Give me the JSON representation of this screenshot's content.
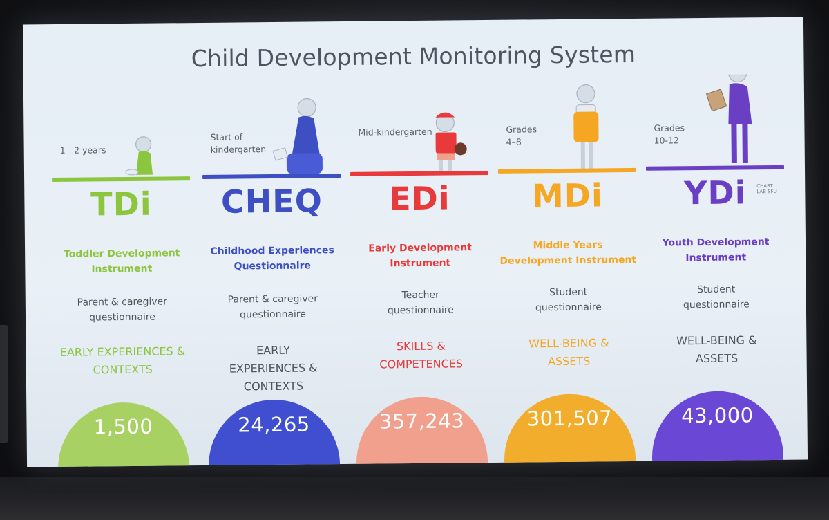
{
  "slide": {
    "title": "Child Development Monitoring System",
    "instruments": [
      {
        "age": "1 - 2 years",
        "acronym": "TDi",
        "full_name": "Toddler Development Instrument",
        "respondent": "Parent & caregiver questionnaire",
        "domain": "EARLY EXPERIENCES & CONTEXTS",
        "count": "1,500",
        "color": "#8cc63f",
        "circle_color": "#a8d163"
      },
      {
        "age": "Start of kindergarten",
        "acronym": "CHEQ",
        "full_name": "Childhood Experiences Questionnaire",
        "respondent": "Parent & caregiver questionnaire",
        "domain": "EARLY EXPERIENCES & CONTEXTS",
        "count": "24,265",
        "color": "#3d4fc2",
        "circle_color": "#3f4fcf"
      },
      {
        "age": "Mid-kindergarten",
        "acronym": "EDi",
        "full_name": "Early Development Instrument",
        "respondent": "Teacher questionnaire",
        "domain": "SKILLS & COMPETENCES",
        "count": "357,243",
        "color": "#e83a3a",
        "circle_color": "#f0a08c"
      },
      {
        "age": "Grades 4–8",
        "acronym": "MDi",
        "full_name": "Middle Years Development Instrument",
        "respondent": "Student questionnaire",
        "domain": "WELL-BEING & ASSETS",
        "count": "301,507",
        "color": "#f5a623",
        "circle_color": "#f2ad2c"
      },
      {
        "age": "Grades 10-12",
        "acronym": "YDi",
        "full_name": "Youth Development Instrument",
        "respondent": "Student questionnaire",
        "domain": "WELL-BEING & ASSETS",
        "count": "43,000",
        "color": "#6a3fc4",
        "circle_color": "#6b47d6"
      }
    ],
    "credit": "CHART LAB SFU"
  }
}
